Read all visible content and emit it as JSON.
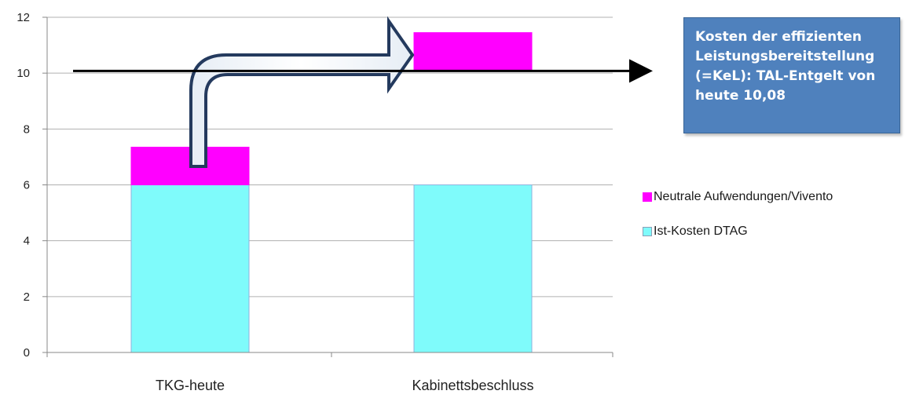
{
  "chart_data": {
    "type": "bar",
    "stacked": true,
    "categories": [
      "TKG-heute",
      "Kabinettsbeschluss"
    ],
    "series": [
      {
        "name": "Ist-Kosten DTAG",
        "values": [
          6.0,
          6.0
        ],
        "color": "#7ffbfb"
      },
      {
        "name": "Neutrale Aufwendungen/Vivento",
        "values": [
          1.35,
          1.35
        ],
        "color": "#ff00ff"
      }
    ],
    "base_offsets": [
      0,
      10.1
    ],
    "ylim": [
      0,
      12
    ],
    "yticks": [
      "0",
      "2",
      "4",
      "6",
      "8",
      "10",
      "12"
    ],
    "grid": true,
    "legend_position": "right",
    "reference_line": {
      "value": 10.08
    },
    "annotation": {
      "lines": [
        "Kosten der effizienten",
        "Leistungsbereitstellung",
        "(=KeL): TAL-Entgelt von",
        "heute 10,08"
      ]
    }
  }
}
